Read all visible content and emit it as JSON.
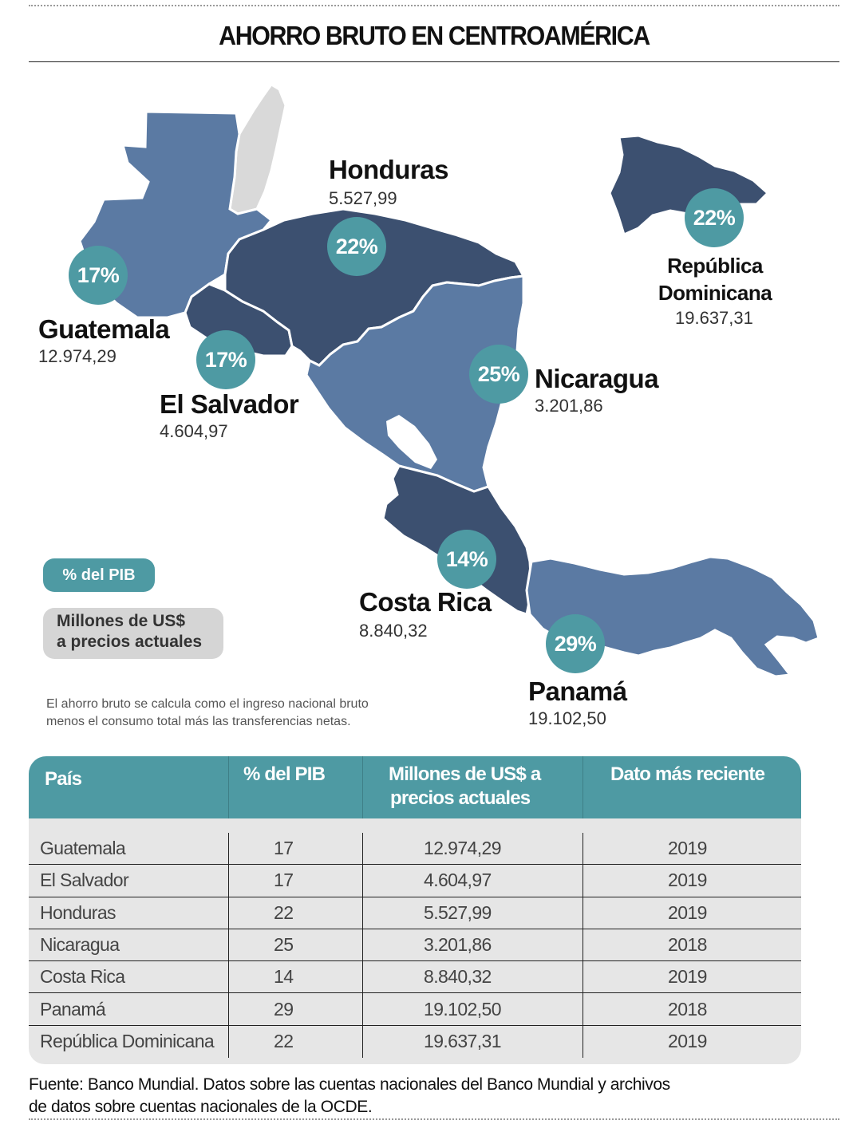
{
  "title": "AHORRO BRUTO EN CENTROAMÉRICA",
  "colors": {
    "accent_teal": "#4e9aa3",
    "country_dark": "#3c5070",
    "country_medium": "#5b7aa3",
    "country_grey": "#d9d9d9"
  },
  "map": {
    "countries": [
      {
        "name": "Guatemala",
        "value": "12.974,29",
        "pct": "17%",
        "shade": "medium"
      },
      {
        "name": "El Salvador",
        "value": "4.604,97",
        "pct": "17%",
        "shade": "dark"
      },
      {
        "name": "Honduras",
        "value": "5.527,99",
        "pct": "22%",
        "shade": "dark"
      },
      {
        "name": "Nicaragua",
        "value": "3.201,86",
        "pct": "25%",
        "shade": "medium"
      },
      {
        "name": "Costa Rica",
        "value": "8.840,32",
        "pct": "14%",
        "shade": "dark"
      },
      {
        "name": "Panamá",
        "value": "19.102,50",
        "pct": "29%",
        "shade": "medium"
      },
      {
        "name": "República Dominicana",
        "name_line1": "República",
        "name_line2": "Dominicana",
        "value": "19.637,31",
        "pct": "22%",
        "shade": "dark"
      }
    ]
  },
  "legend": {
    "pib_label": "% del PIB",
    "usd_line1": "Millones de US$",
    "usd_line2": "a precios actuales"
  },
  "note_line1": "El ahorro bruto se calcula como el ingreso nacional bruto",
  "note_line2": "menos el consumo total más las transferencias netas.",
  "table": {
    "headers": {
      "country": "País",
      "pct": "% del PIB",
      "usd_line1": "Millones de US$ a",
      "usd_line2": "precios actuales",
      "year": "Dato más reciente"
    },
    "rows": [
      {
        "country": "Guatemala",
        "pct": "17",
        "usd": "12.974,29",
        "year": "2019"
      },
      {
        "country": "El Salvador",
        "pct": "17",
        "usd": "4.604,97",
        "year": "2019"
      },
      {
        "country": "Honduras",
        "pct": "22",
        "usd": "5.527,99",
        "year": "2019"
      },
      {
        "country": "Nicaragua",
        "pct": "25",
        "usd": "3.201,86",
        "year": "2018"
      },
      {
        "country": "Costa Rica",
        "pct": "14",
        "usd": "8.840,32",
        "year": "2019"
      },
      {
        "country": "Panamá",
        "pct": "29",
        "usd": "19.102,50",
        "year": "2018"
      },
      {
        "country": "República Dominicana",
        "pct": "22",
        "usd": "19.637,31",
        "year": "2019"
      }
    ]
  },
  "source_line1": "Fuente: Banco Mundial. Datos sobre las cuentas nacionales del Banco Mundial y archivos",
  "source_line2": "de datos sobre cuentas nacionales de la OCDE."
}
